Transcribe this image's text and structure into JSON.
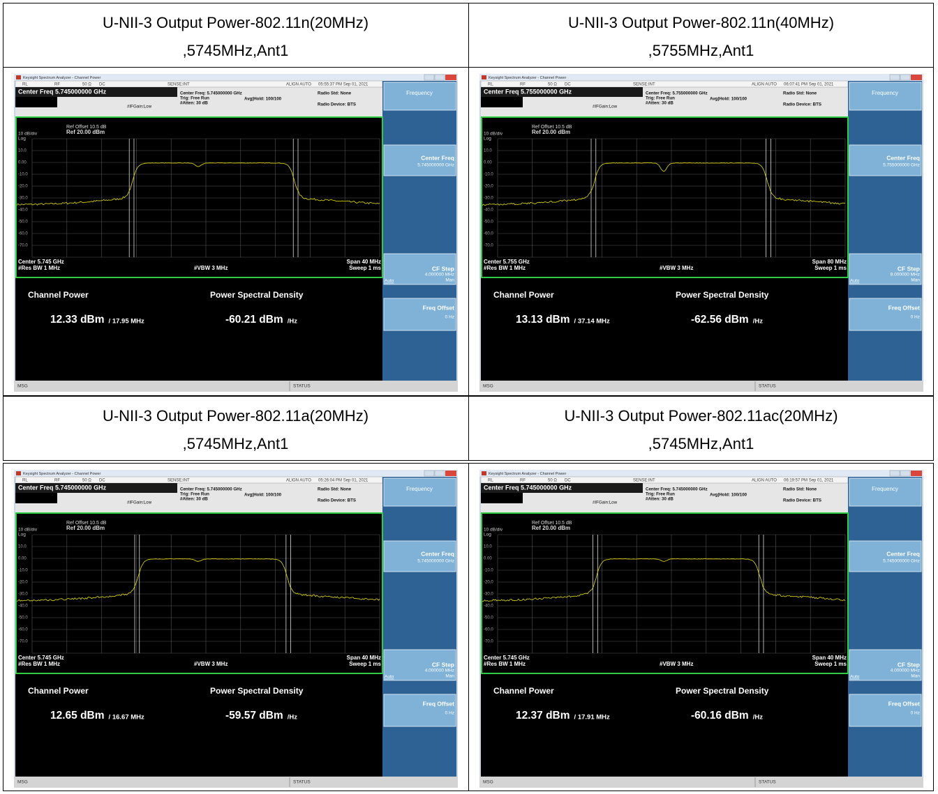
{
  "table": {
    "cells": [
      {
        "title": [
          "U-NII-3 Output Power-802.11n(20MHz)",
          ",5745MHz,Ant1"
        ],
        "screen": {
          "window_title": "Keysight Spectrum Analyzer - Channel Power",
          "status_top": [
            "RL",
            "RF",
            "50 Ω",
            "DC",
            "SENSE:INT",
            "ALIGN AUTO",
            "05:55:37 PM Sep 01, 2021"
          ],
          "center_freq_main": "Center Freq 5.745000000 GHz",
          "settings": [
            "Center Freq: 5.745000000 GHz",
            "Trig: Free Run",
            "#Atten: 30 dB",
            "Avg|Hold: 100/100",
            "Radio Std: None",
            "Radio Device: BTS",
            "#IFGain:Low"
          ],
          "ref_offset": "Ref Offset 10.5 dB",
          "ref": "Ref 20.00 dBm",
          "scale": "10 dB/div",
          "log": "Log",
          "y_labels": [
            "10.0",
            "0.00",
            "-10.0",
            "-20.0",
            "-30.0",
            "-40.0",
            "-50.0",
            "-60.0",
            "-70.0"
          ],
          "center": "Center 5.745 GHz",
          "res_bw": "#Res BW 1 MHz",
          "vbw": "#VBW 3 MHz",
          "span": "Span 40 MHz",
          "sweep": "Sweep 1 ms",
          "channel_power_label": "Channel Power",
          "channel_power": "12.33 dBm",
          "channel_bw": "/ 17.95 MHz",
          "psd_label": "Power Spectral Density",
          "psd": "-60.21 dBm",
          "psd_unit": "/Hz",
          "softkeys": {
            "menu": "Frequency",
            "center_freq": "Center Freq",
            "center_freq_value": "5.745000000 GHz",
            "cf_step": "CF Step",
            "cf_step_value": "4.000000 MHz",
            "auto": "Auto",
            "man": "Man",
            "freq_offset": "Freq Offset",
            "freq_offset_value": "0 Hz"
          },
          "msg": "MSG",
          "status": "STATUS"
        }
      },
      {
        "title": [
          "U-NII-3 Output Power-802.11n(40MHz)",
          ",5755MHz,Ant1"
        ],
        "screen": {
          "window_title": "Keysight Spectrum Analyzer - Channel Power",
          "status_top": [
            "RL",
            "RF",
            "50 Ω",
            "DC",
            "SENSE:INT",
            "ALIGN AUTO",
            "06:07:41 PM Sep 01, 2021"
          ],
          "center_freq_main": "Center Freq 5.755000000 GHz",
          "settings": [
            "Center Freq: 5.755000000 GHz",
            "Trig: Free Run",
            "#Atten: 30 dB",
            "Avg|Hold: 100/100",
            "Radio Std: None",
            "Radio Device: BTS",
            "#IFGain:Low"
          ],
          "ref_offset": "Ref Offset 10.5 dB",
          "ref": "Ref 20.00 dBm",
          "scale": "10 dB/div",
          "log": "Log",
          "y_labels": [
            "10.0",
            "0.00",
            "-10.0",
            "-20.0",
            "-30.0",
            "-40.0",
            "-50.0",
            "-60.0",
            "-70.0"
          ],
          "center": "Center 5.755 GHz",
          "res_bw": "#Res BW 1 MHz",
          "vbw": "#VBW 3 MHz",
          "span": "Span 80 MHz",
          "sweep": "Sweep 1 ms",
          "channel_power_label": "Channel Power",
          "channel_power": "13.13 dBm",
          "channel_bw": "/ 37.14 MHz",
          "psd_label": "Power Spectral Density",
          "psd": "-62.56 dBm",
          "psd_unit": "/Hz",
          "softkeys": {
            "menu": "Frequency",
            "center_freq": "Center Freq",
            "center_freq_value": "5.755000000 GHz",
            "cf_step": "CF Step",
            "cf_step_value": "8.000000 MHz",
            "auto": "Auto",
            "man": "Man",
            "freq_offset": "Freq Offset",
            "freq_offset_value": "0 Hz"
          },
          "msg": "MSG",
          "status": "STATUS"
        }
      },
      {
        "title": [
          "U-NII-3 Output Power-802.11a(20MHz)",
          ",5745MHz,Ant1"
        ],
        "screen": {
          "window_title": "Keysight Spectrum Analyzer - Channel Power",
          "status_top": [
            "RL",
            "RF",
            "50 Ω",
            "DC",
            "SENSE:INT",
            "ALIGN AUTO",
            "05:26:04 PM Sep 01, 2021"
          ],
          "center_freq_main": "Center Freq 5.745000000 GHz",
          "settings": [
            "Center Freq: 5.745000000 GHz",
            "Trig: Free Run",
            "#Atten: 30 dB",
            "Avg|Hold: 100/100",
            "Radio Std: None",
            "Radio Device: BTS",
            "#IFGain:Low"
          ],
          "ref_offset": "Ref Offset 10.5 dB",
          "ref": "Ref 20.00 dBm",
          "scale": "10 dB/div",
          "log": "Log",
          "y_labels": [
            "10.0",
            "0.00",
            "-10.0",
            "-20.0",
            "-30.0",
            "-40.0",
            "-50.0",
            "-60.0",
            "-70.0"
          ],
          "center": "Center 5.745 GHz",
          "res_bw": "#Res BW 1 MHz",
          "vbw": "#VBW 3 MHz",
          "span": "Span 40 MHz",
          "sweep": "Sweep 1 ms",
          "channel_power_label": "Channel Power",
          "channel_power": "12.65 dBm",
          "channel_bw": "/ 16.67 MHz",
          "psd_label": "Power Spectral Density",
          "psd": "-59.57 dBm",
          "psd_unit": "/Hz",
          "softkeys": {
            "menu": "Frequency",
            "center_freq": "Center Freq",
            "center_freq_value": "5.745000000 GHz",
            "cf_step": "CF Step",
            "cf_step_value": "4.000000 MHz",
            "auto": "Auto",
            "man": "Man",
            "freq_offset": "Freq Offset",
            "freq_offset_value": "0 Hz"
          },
          "msg": "MSG",
          "status": "STATUS"
        }
      },
      {
        "title": [
          "U-NII-3 Output Power-802.11ac(20MHz)",
          ",5745MHz,Ant1"
        ],
        "screen": {
          "window_title": "Keysight Spectrum Analyzer - Channel Power",
          "status_top": [
            "RL",
            "RF",
            "50 Ω",
            "DC",
            "SENSE:INT",
            "ALIGN AUTO",
            "06:19:57 PM Sep 01, 2021"
          ],
          "center_freq_main": "Center Freq 5.745000000 GHz",
          "settings": [
            "Center Freq: 5.745000000 GHz",
            "Trig: Free Run",
            "#Atten: 30 dB",
            "Avg|Hold: 100/100",
            "Radio Std: None",
            "Radio Device: BTS",
            "#IFGain:Low"
          ],
          "ref_offset": "Ref Offset 10.5 dB",
          "ref": "Ref 20.00 dBm",
          "scale": "10 dB/div",
          "log": "Log",
          "y_labels": [
            "10.0",
            "0.00",
            "-10.0",
            "-20.0",
            "-30.0",
            "-40.0",
            "-50.0",
            "-60.0",
            "-70.0"
          ],
          "center": "Center 5.745 GHz",
          "res_bw": "#Res BW 1 MHz",
          "vbw": "#VBW 3 MHz",
          "span": "Span 40 MHz",
          "sweep": "Sweep 1 ms",
          "channel_power_label": "Channel Power",
          "channel_power": "12.37 dBm",
          "channel_bw": "/ 17.91 MHz",
          "psd_label": "Power Spectral Density",
          "psd": "-60.16 dBm",
          "psd_unit": "/Hz",
          "softkeys": {
            "menu": "Frequency",
            "center_freq": "Center Freq",
            "center_freq_value": "5.745000000 GHz",
            "cf_step": "CF Step",
            "cf_step_value": "4.000000 MHz",
            "auto": "Auto",
            "man": "Man",
            "freq_offset": "Freq Offset",
            "freq_offset_value": "0 Hz"
          },
          "msg": "MSG",
          "status": "STATUS"
        }
      }
    ]
  }
}
